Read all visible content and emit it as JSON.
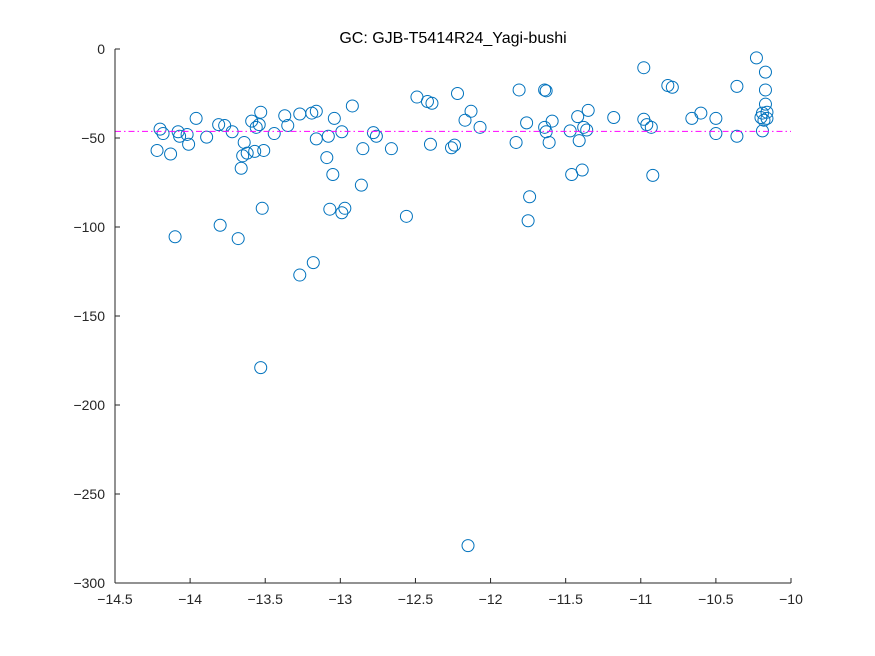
{
  "chart_data": {
    "type": "scatter",
    "title": "GC: GJB-T5414R24_Yagi-bushi",
    "xlabel": "",
    "ylabel": "",
    "xlim": [
      -14.5,
      -10
    ],
    "ylim": [
      -300,
      0
    ],
    "xticks": [
      -14.5,
      -14,
      -13.5,
      -13,
      -12.5,
      -12,
      -11.5,
      -11,
      -10.5,
      -10
    ],
    "xtick_labels": [
      "−14.5",
      "−14",
      "−13.5",
      "−13",
      "−12.5",
      "−12",
      "−11.5",
      "−11",
      "−10.5",
      "−10"
    ],
    "yticks": [
      0,
      -50,
      -100,
      -150,
      -200,
      -250,
      -300
    ],
    "ytick_labels": [
      "0",
      "−50",
      "−100",
      "−150",
      "−200",
      "−250",
      "−300"
    ],
    "grid": false,
    "marker_color": "#0072BD",
    "reference_line": {
      "y": -46.3,
      "color": "#FF00FF",
      "style": "dash-dot"
    },
    "points": [
      [
        -14.22,
        -57
      ],
      [
        -14.2,
        -45
      ],
      [
        -14.18,
        -47.5
      ],
      [
        -14.13,
        -59
      ],
      [
        -14.1,
        -105.5
      ],
      [
        -14.08,
        -46.5
      ],
      [
        -14.07,
        -49
      ],
      [
        -14.02,
        -48
      ],
      [
        -14.01,
        -53.5
      ],
      [
        -13.96,
        -39
      ],
      [
        -13.89,
        -49.5
      ],
      [
        -13.81,
        -42.5
      ],
      [
        -13.8,
        -99
      ],
      [
        -13.77,
        -43
      ],
      [
        -13.72,
        -46.5
      ],
      [
        -13.68,
        -106.5
      ],
      [
        -13.66,
        -67
      ],
      [
        -13.65,
        -60
      ],
      [
        -13.64,
        -52.5
      ],
      [
        -13.62,
        -58.5
      ],
      [
        -13.59,
        -40.5
      ],
      [
        -13.57,
        -57.5
      ],
      [
        -13.56,
        -44
      ],
      [
        -13.54,
        -42.5
      ],
      [
        -13.53,
        -35.5
      ],
      [
        -13.53,
        -179
      ],
      [
        -13.52,
        -89.5
      ],
      [
        -13.51,
        -57
      ],
      [
        -13.44,
        -47.5
      ],
      [
        -13.37,
        -37.5
      ],
      [
        -13.35,
        -43
      ],
      [
        -13.27,
        -36.5
      ],
      [
        -13.27,
        -127
      ],
      [
        -13.19,
        -36
      ],
      [
        -13.18,
        -120
      ],
      [
        -13.16,
        -35
      ],
      [
        -13.16,
        -50.5
      ],
      [
        -13.09,
        -61
      ],
      [
        -13.08,
        -49
      ],
      [
        -13.07,
        -90
      ],
      [
        -13.05,
        -70.5
      ],
      [
        -13.04,
        -39
      ],
      [
        -12.99,
        -92
      ],
      [
        -12.99,
        -46.5
      ],
      [
        -12.97,
        -89.5
      ],
      [
        -12.92,
        -32
      ],
      [
        -12.86,
        -76.5
      ],
      [
        -12.85,
        -56
      ],
      [
        -12.78,
        -47
      ],
      [
        -12.76,
        -49
      ],
      [
        -12.66,
        -56
      ],
      [
        -12.56,
        -94
      ],
      [
        -12.49,
        -27
      ],
      [
        -12.42,
        -29.5
      ],
      [
        -12.4,
        -53.5
      ],
      [
        -12.39,
        -30.5
      ],
      [
        -12.26,
        -55.5
      ],
      [
        -12.24,
        -54
      ],
      [
        -12.22,
        -25
      ],
      [
        -12.17,
        -40
      ],
      [
        -12.15,
        -279
      ],
      [
        -12.13,
        -35
      ],
      [
        -12.07,
        -44
      ],
      [
        -11.83,
        -52.5
      ],
      [
        -11.81,
        -23
      ],
      [
        -11.76,
        -41.5
      ],
      [
        -11.75,
        -96.5
      ],
      [
        -11.74,
        -83
      ],
      [
        -11.64,
        -44
      ],
      [
        -11.64,
        -23
      ],
      [
        -11.63,
        -23.5
      ],
      [
        -11.63,
        -46.5
      ],
      [
        -11.61,
        -52.5
      ],
      [
        -11.59,
        -40.5
      ],
      [
        -11.47,
        -46
      ],
      [
        -11.46,
        -70.5
      ],
      [
        -11.42,
        -38
      ],
      [
        -11.41,
        -51.5
      ],
      [
        -11.39,
        -68
      ],
      [
        -11.38,
        -44
      ],
      [
        -11.36,
        -45.5
      ],
      [
        -11.35,
        -34.5
      ],
      [
        -11.18,
        -38.5
      ],
      [
        -10.98,
        -39.5
      ],
      [
        -10.98,
        -10.5
      ],
      [
        -10.96,
        -42.5
      ],
      [
        -10.93,
        -44
      ],
      [
        -10.92,
        -71
      ],
      [
        -10.82,
        -20.5
      ],
      [
        -10.79,
        -21.5
      ],
      [
        -10.66,
        -39
      ],
      [
        -10.6,
        -36
      ],
      [
        -10.5,
        -39
      ],
      [
        -10.5,
        -47.5
      ],
      [
        -10.36,
        -21
      ],
      [
        -10.36,
        -49
      ],
      [
        -10.23,
        -5
      ],
      [
        -10.2,
        -38.5
      ],
      [
        -10.19,
        -46
      ],
      [
        -10.19,
        -36
      ],
      [
        -10.18,
        -40
      ],
      [
        -10.17,
        -13
      ],
      [
        -10.17,
        -23
      ],
      [
        -10.17,
        -31
      ],
      [
        -10.16,
        -35.5
      ],
      [
        -10.16,
        -39
      ]
    ]
  }
}
